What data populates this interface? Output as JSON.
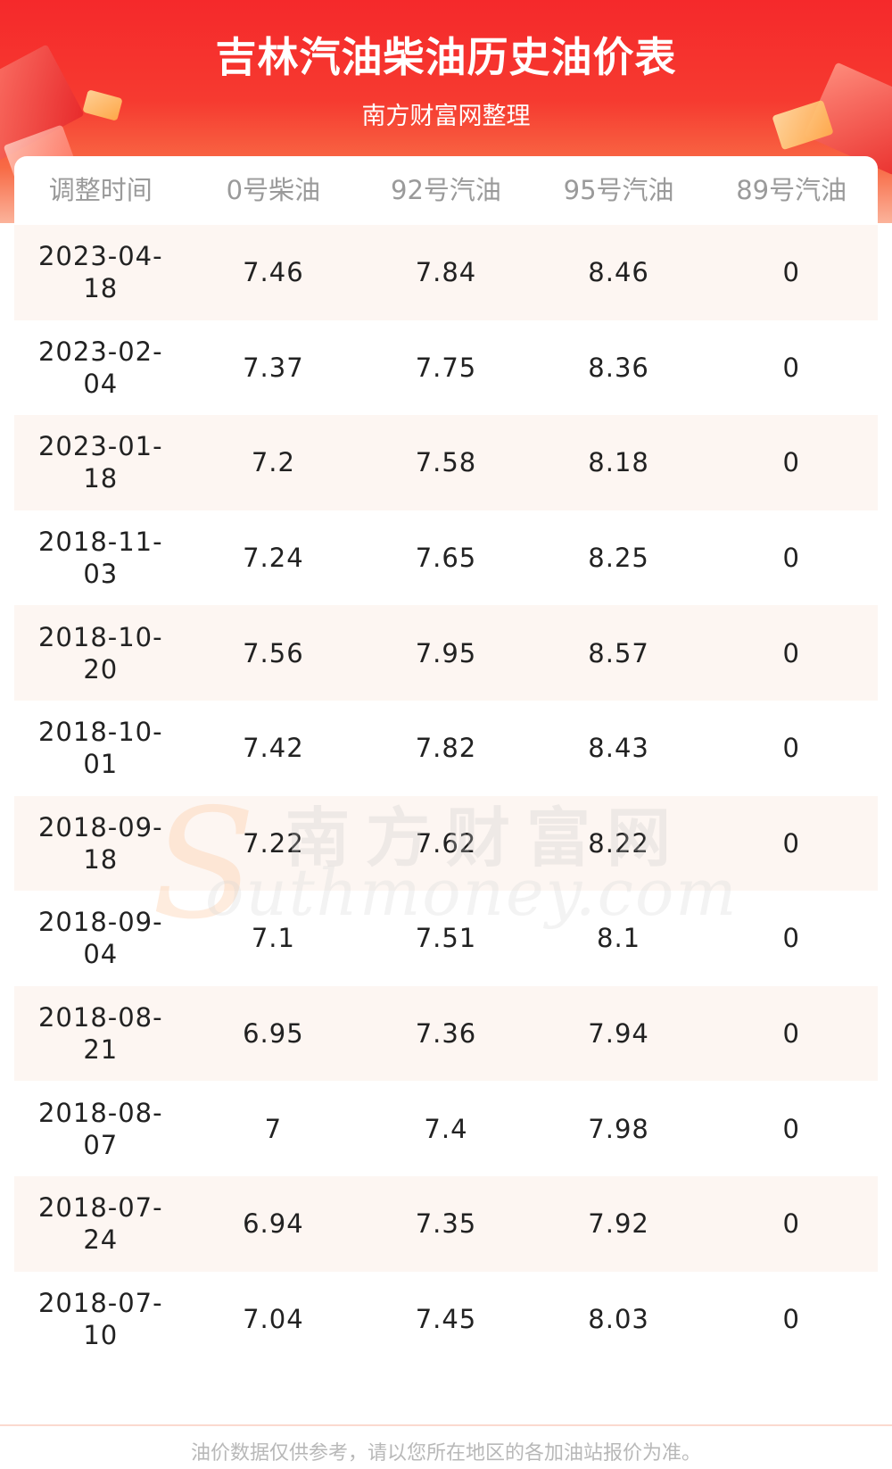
{
  "header": {
    "title": "吉林汽油柴油历史油价表",
    "subtitle": "南方财富网整理"
  },
  "table": {
    "columns": [
      "调整时间",
      "0号柴油",
      "92号汽油",
      "95号汽油",
      "89号汽油"
    ],
    "rows": [
      {
        "date_line1": "2023-04-",
        "date_line2": "18",
        "diesel0": "7.46",
        "gas92": "7.84",
        "gas95": "8.46",
        "gas89": "0"
      },
      {
        "date_line1": "2023-02-",
        "date_line2": "04",
        "diesel0": "7.37",
        "gas92": "7.75",
        "gas95": "8.36",
        "gas89": "0"
      },
      {
        "date_line1": "2023-01-",
        "date_line2": "18",
        "diesel0": "7.2",
        "gas92": "7.58",
        "gas95": "8.18",
        "gas89": "0"
      },
      {
        "date_line1": "2018-11-",
        "date_line2": "03",
        "diesel0": "7.24",
        "gas92": "7.65",
        "gas95": "8.25",
        "gas89": "0"
      },
      {
        "date_line1": "2018-10-",
        "date_line2": "20",
        "diesel0": "7.56",
        "gas92": "7.95",
        "gas95": "8.57",
        "gas89": "0"
      },
      {
        "date_line1": "2018-10-",
        "date_line2": "01",
        "diesel0": "7.42",
        "gas92": "7.82",
        "gas95": "8.43",
        "gas89": "0"
      },
      {
        "date_line1": "2018-09-",
        "date_line2": "18",
        "diesel0": "7.22",
        "gas92": "7.62",
        "gas95": "8.22",
        "gas89": "0"
      },
      {
        "date_line1": "2018-09-",
        "date_line2": "04",
        "diesel0": "7.1",
        "gas92": "7.51",
        "gas95": "8.1",
        "gas89": "0"
      },
      {
        "date_line1": "2018-08-",
        "date_line2": "21",
        "diesel0": "6.95",
        "gas92": "7.36",
        "gas95": "7.94",
        "gas89": "0"
      },
      {
        "date_line1": "2018-08-",
        "date_line2": "07",
        "diesel0": "7",
        "gas92": "7.4",
        "gas95": "7.98",
        "gas89": "0"
      },
      {
        "date_line1": "2018-07-",
        "date_line2": "24",
        "diesel0": "6.94",
        "gas92": "7.35",
        "gas95": "7.92",
        "gas89": "0"
      },
      {
        "date_line1": "2018-07-",
        "date_line2": "10",
        "diesel0": "7.04",
        "gas92": "7.45",
        "gas95": "8.03",
        "gas89": "0"
      }
    ]
  },
  "watermark": {
    "cn": "南方财富网",
    "en": "outhmoney.com",
    "s": "S"
  },
  "footer": {
    "note": "油价数据仅供参考，请以您所在地区的各加油站报价为准。"
  },
  "colors": {
    "header_red": "#f5292b",
    "row_alt": "#fdf6f2",
    "header_text": "#9a9a9a"
  }
}
